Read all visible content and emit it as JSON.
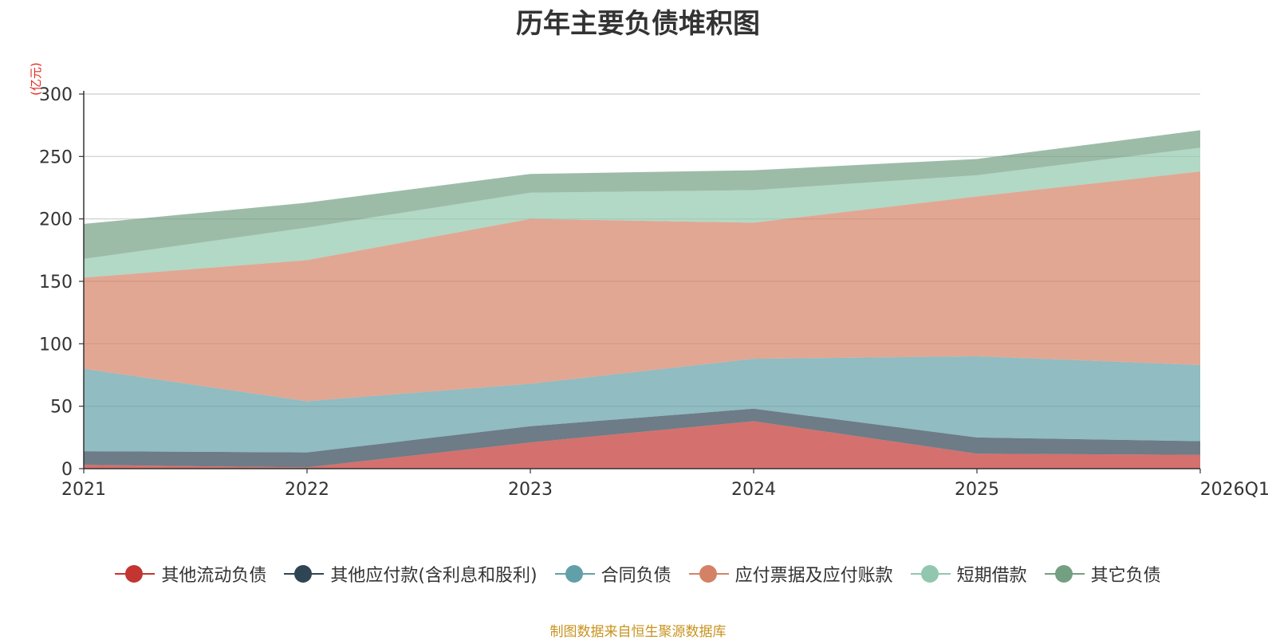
{
  "chart_data": {
    "type": "area",
    "stacked": true,
    "title": "历年主要负债堆积图",
    "ylabel": "(亿元)",
    "x": [
      "2021",
      "2022",
      "2023",
      "2024",
      "2025",
      "2026Q1"
    ],
    "ylim": [
      0,
      300
    ],
    "yticks": [
      0,
      50,
      100,
      150,
      200,
      250,
      300
    ],
    "grid": true,
    "legend_position": "bottom",
    "series": [
      {
        "name": "其他流动负债",
        "color": "#c23531",
        "values": [
          3,
          1,
          21,
          38,
          12,
          11
        ]
      },
      {
        "name": "其他应付款(含利息和股利)",
        "color": "#2f4554",
        "values": [
          11,
          12,
          13,
          10,
          13,
          11
        ]
      },
      {
        "name": "合同负债",
        "color": "#61a0a8",
        "values": [
          66,
          41,
          34,
          40,
          65,
          61
        ]
      },
      {
        "name": "应付票据及应付账款",
        "color": "#d48265",
        "values": [
          73,
          113,
          132,
          109,
          128,
          155
        ]
      },
      {
        "name": "短期借款",
        "color": "#91c7ae",
        "values": [
          15,
          26,
          21,
          26,
          17,
          19
        ]
      },
      {
        "name": "其它负债",
        "color": "#749f83",
        "values": [
          28,
          20,
          15,
          16,
          13,
          14
        ]
      }
    ],
    "source_note": "制图数据来自恒生聚源数据库"
  }
}
